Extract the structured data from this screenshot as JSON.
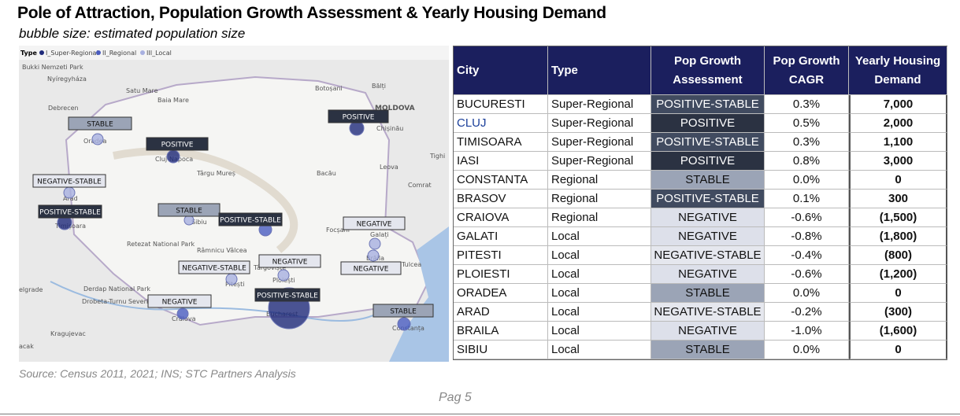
{
  "header": {
    "title": "Pole of Attraction, Population Growth Assessment & Yearly Housing Demand",
    "subtitle": "bubble size: estimated population size"
  },
  "map": {
    "legend": {
      "title": "Type",
      "items": [
        "I_Super-Regional",
        "II_Regional",
        "III_Local"
      ]
    },
    "places": [
      "Bukki Nemzeti Park",
      "Nyíregyháza",
      "Satu Mare",
      "Baia Mare",
      "Botoșani",
      "Bălți",
      "Debrecen",
      "MOLDOVA",
      "Chișinău",
      "Oradea",
      "Cluj-Napoca",
      "Târgu Mureș",
      "Bacău",
      "Leova",
      "Tighi",
      "Comrat",
      "Arad",
      "Timișoara",
      "Sibiu",
      "Focșani",
      "Galați",
      "Retezat National Park",
      "Râmnicu Vâlcea",
      "Brăila",
      "Tulcea",
      "Ploiești",
      "Pitești",
      "elgrade",
      "Bucharest",
      "Derdap National Park",
      "Drobeta-Turnu Severin",
      "Craiova",
      "Constanța",
      "Kragujevac",
      "acak",
      "Târgoviște"
    ],
    "bubble_labels": [
      "STABLE",
      "POSITIVE",
      "POSITIVE",
      "NEGATIVE-STABLE",
      "POSITIVE-STABLE",
      "STABLE",
      "POSITIVE-STABLE",
      "NEGATIVE",
      "NEGATIVE",
      "NEGATIVE-STABLE",
      "NEGATIVE",
      "POSITIVE-STABLE",
      "NEGATIVE",
      "STABLE"
    ]
  },
  "table": {
    "headers": [
      "City",
      "Type",
      "Pop Growth Assessment",
      "Pop Growth CAGR",
      "Yearly Housing Demand"
    ],
    "rows": [
      [
        "BUCURESTI",
        "Super-Regional",
        "POSITIVE-STABLE",
        "0.3%",
        "7,000"
      ],
      [
        "CLUJ",
        "Super-Regional",
        "POSITIVE",
        "0.5%",
        "2,000"
      ],
      [
        "TIMISOARA",
        "Super-Regional",
        "POSITIVE-STABLE",
        "0.3%",
        "1,100"
      ],
      [
        "IASI",
        "Super-Regional",
        "POSITIVE",
        "0.8%",
        "3,000"
      ],
      [
        "CONSTANTA",
        "Regional",
        "STABLE",
        "0.0%",
        "0"
      ],
      [
        "BRASOV",
        "Regional",
        "POSITIVE-STABLE",
        "0.1%",
        "300"
      ],
      [
        "CRAIOVA",
        "Regional",
        "NEGATIVE",
        "-0.6%",
        "(1,500)"
      ],
      [
        "GALATI",
        "Local",
        "NEGATIVE",
        "-0.8%",
        "(1,800)"
      ],
      [
        "PITESTI",
        "Local",
        "NEGATIVE-STABLE",
        "-0.4%",
        "(800)"
      ],
      [
        "PLOIESTI",
        "Local",
        "NEGATIVE",
        "-0.6%",
        "(1,200)"
      ],
      [
        "ORADEA",
        "Local",
        "STABLE",
        "0.0%",
        "0"
      ],
      [
        "ARAD",
        "Local",
        "NEGATIVE-STABLE",
        "-0.2%",
        "(300)"
      ],
      [
        "BRAILA",
        "Local",
        "NEGATIVE",
        "-1.0%",
        "(1,600)"
      ],
      [
        "SIBIU",
        "Local",
        "STABLE",
        "0.0%",
        "0"
      ]
    ]
  },
  "footer": {
    "source": "Source: Census 2011, 2021; INS; STC Partners Analysis",
    "page": "Pag 5"
  }
}
